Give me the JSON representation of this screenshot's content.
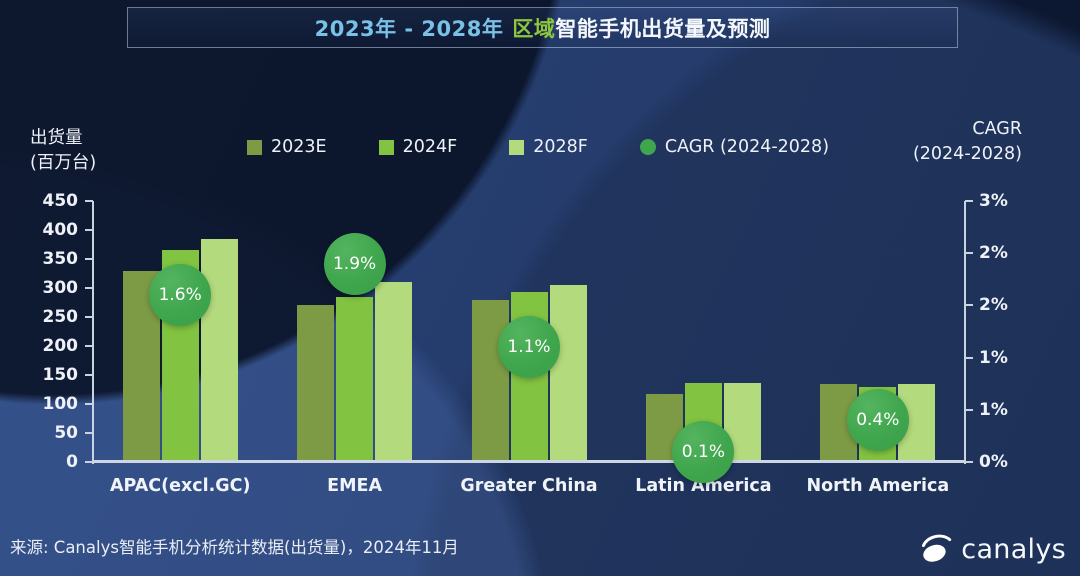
{
  "title": {
    "range": "2023年 - 2028年",
    "highlight": "区域",
    "rest": "智能手机出货量及预测"
  },
  "axes": {
    "left_title_line1": "出货量",
    "left_title_line2": "(百万台)",
    "right_title_line1": "CAGR",
    "right_title_line2": "(2024-2028)",
    "left_ticks": [
      "450",
      "400",
      "350",
      "300",
      "250",
      "200",
      "150",
      "100",
      "50",
      "0"
    ],
    "right_ticks": [
      "3%",
      "2%",
      "2%",
      "1%",
      "1%",
      "0%"
    ]
  },
  "legend": [
    {
      "label": "2023E",
      "swatch": "square",
      "color": "#7d9b44"
    },
    {
      "label": "2024F",
      "swatch": "square",
      "color": "#82c341"
    },
    {
      "label": "2028F",
      "swatch": "square",
      "color": "#b3da7c"
    },
    {
      "label": "CAGR (2024-2028)",
      "swatch": "circle",
      "color": "#3fa64d"
    }
  ],
  "chart_data": {
    "type": "bar",
    "title": "2023年 - 2028年 区域智能手机出货量及预测",
    "categories": [
      "APAC(excl.GC)",
      "EMEA",
      "Greater China",
      "Latin America",
      "North America"
    ],
    "series": [
      {
        "name": "2023E",
        "color": "#7d9b44",
        "values": [
          330,
          270,
          280,
          118,
          134
        ]
      },
      {
        "name": "2024F",
        "color": "#82c341",
        "values": [
          365,
          285,
          293,
          136,
          130
        ]
      },
      {
        "name": "2028F",
        "color": "#b3da7c",
        "values": [
          385,
          310,
          305,
          136,
          134
        ]
      }
    ],
    "cagr_series": {
      "name": "CAGR (2024-2028)",
      "color": "#3fa64d",
      "values": [
        1.6,
        1.9,
        1.1,
        0.1,
        0.4
      ],
      "labels": [
        "1.6%",
        "1.9%",
        "1.1%",
        "0.1%",
        "0.4%"
      ]
    },
    "ylabel": "出货量 (百万台)",
    "y2label": "CAGR (2024-2028)",
    "ylim": [
      0,
      450
    ],
    "y2lim": [
      0,
      2.5
    ],
    "grid": false,
    "legend_position": "top"
  },
  "footer": {
    "source": "来源: Canalys智能手机分析统计数据(出货量)，2024年11月",
    "brand": "canalys"
  }
}
